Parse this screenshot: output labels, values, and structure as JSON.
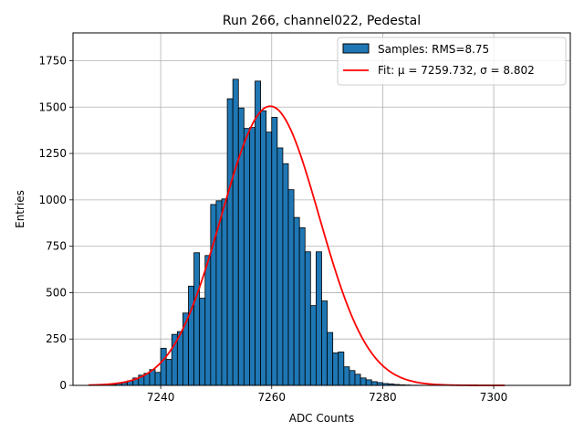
{
  "chart_data": {
    "type": "bar",
    "title": "Run 266, channel022, Pedestal",
    "xlabel": "ADC Counts",
    "ylabel": "Entries",
    "xlim": [
      7224.2,
      7313.8
    ],
    "ylim": [
      0,
      1900
    ],
    "x_ticks": [
      7240,
      7260,
      7280,
      7300
    ],
    "y_ticks": [
      0,
      250,
      500,
      750,
      1000,
      1250,
      1500,
      1750
    ],
    "grid": true,
    "legend_position": "upper right",
    "bin_width": 1,
    "histogram": {
      "name": "Samples: RMS=8.75",
      "color": "#1f77b4",
      "bins_left": [
        7231,
        7232,
        7233,
        7234,
        7235,
        7236,
        7237,
        7238,
        7239,
        7240,
        7241,
        7242,
        7243,
        7244,
        7245,
        7246,
        7247,
        7248,
        7249,
        7250,
        7251,
        7252,
        7253,
        7254,
        7255,
        7256,
        7257,
        7258,
        7259,
        7260,
        7261,
        7262,
        7263,
        7264,
        7265,
        7266,
        7267,
        7268,
        7269,
        7270,
        7271,
        7272,
        7273,
        7274,
        7275,
        7276,
        7277,
        7278,
        7279,
        7280,
        7281,
        7282,
        7283,
        7284,
        7285,
        7286,
        7287,
        7288,
        7289,
        7290
      ],
      "counts": [
        5,
        10,
        15,
        25,
        40,
        55,
        65,
        85,
        70,
        200,
        140,
        275,
        290,
        390,
        535,
        715,
        470,
        700,
        975,
        995,
        1005,
        1545,
        1650,
        1495,
        1385,
        1390,
        1640,
        1480,
        1365,
        1445,
        1280,
        1195,
        1055,
        905,
        850,
        720,
        430,
        720,
        455,
        285,
        175,
        180,
        100,
        80,
        60,
        40,
        30,
        20,
        15,
        10,
        8,
        5,
        3,
        2,
        1,
        1,
        0,
        0,
        0,
        0
      ]
    },
    "fit": {
      "name": "Fit: μ = 7259.732, σ = 8.802",
      "color": "#ff0000",
      "mu": 7259.732,
      "sigma": 8.802,
      "amplitude": 1505,
      "x_range": [
        7227,
        7302
      ]
    }
  }
}
